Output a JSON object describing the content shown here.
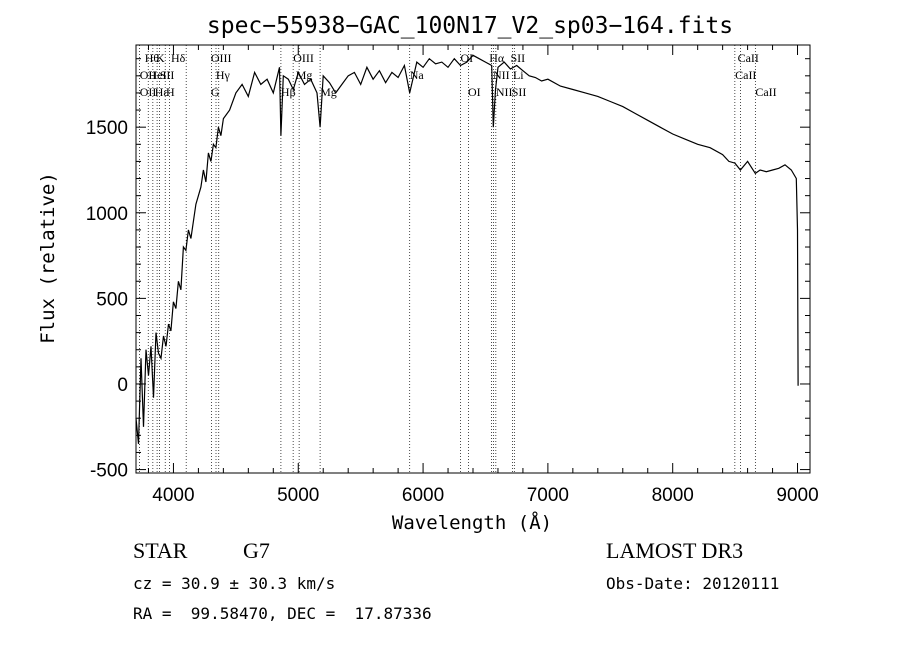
{
  "chart_data": {
    "type": "line",
    "title": "spec−55938−GAC_100N17_V2_sp03−164.fits",
    "xlabel": "Wavelength (Å)",
    "ylabel": "Flux (relative)",
    "xlim": [
      3700,
      9100
    ],
    "ylim": [
      -520,
      1980
    ],
    "xticks": [
      4000,
      5000,
      6000,
      7000,
      8000,
      9000
    ],
    "yticks": [
      -500,
      0,
      500,
      1000,
      1500
    ],
    "series": [
      {
        "name": "flux",
        "x": [
          3700,
          3720,
          3740,
          3760,
          3780,
          3800,
          3820,
          3840,
          3860,
          3880,
          3900,
          3920,
          3940,
          3960,
          3980,
          4000,
          4020,
          4040,
          4060,
          4080,
          4100,
          4120,
          4140,
          4160,
          4180,
          4200,
          4220,
          4240,
          4260,
          4280,
          4300,
          4320,
          4340,
          4360,
          4380,
          4400,
          4450,
          4500,
          4550,
          4600,
          4650,
          4700,
          4750,
          4800,
          4850,
          4861,
          4880,
          4920,
          4960,
          5000,
          5050,
          5100,
          5150,
          5175,
          5200,
          5250,
          5300,
          5350,
          5400,
          5450,
          5500,
          5550,
          5600,
          5650,
          5700,
          5750,
          5800,
          5850,
          5893,
          5950,
          6000,
          6050,
          6100,
          6150,
          6200,
          6250,
          6300,
          6350,
          6400,
          6450,
          6500,
          6550,
          6563,
          6580,
          6600,
          6650,
          6700,
          6750,
          6800,
          6850,
          6900,
          6950,
          7000,
          7100,
          7200,
          7300,
          7400,
          7500,
          7600,
          7700,
          7800,
          7900,
          8000,
          8100,
          8200,
          8300,
          8400,
          8450,
          8498,
          8542,
          8600,
          8662,
          8700,
          8750,
          8800,
          8850,
          8900,
          8950,
          8990,
          9000,
          9005
        ],
        "y": [
          -200,
          -350,
          150,
          -250,
          200,
          50,
          220,
          -80,
          300,
          180,
          150,
          280,
          220,
          350,
          310,
          480,
          440,
          600,
          550,
          800,
          780,
          900,
          850,
          950,
          1050,
          1100,
          1150,
          1250,
          1180,
          1350,
          1300,
          1400,
          1380,
          1500,
          1450,
          1550,
          1600,
          1700,
          1750,
          1680,
          1820,
          1750,
          1780,
          1700,
          1850,
          1450,
          1800,
          1780,
          1720,
          1820,
          1750,
          1780,
          1700,
          1500,
          1800,
          1760,
          1700,
          1750,
          1800,
          1820,
          1750,
          1850,
          1780,
          1830,
          1760,
          1820,
          1790,
          1860,
          1700,
          1880,
          1850,
          1900,
          1870,
          1880,
          1850,
          1900,
          1860,
          1880,
          1920,
          1900,
          1880,
          1860,
          1500,
          1720,
          1850,
          1880,
          1840,
          1860,
          1830,
          1800,
          1790,
          1770,
          1780,
          1740,
          1720,
          1700,
          1680,
          1650,
          1620,
          1580,
          1540,
          1500,
          1460,
          1430,
          1400,
          1380,
          1340,
          1300,
          1290,
          1250,
          1300,
          1230,
          1250,
          1240,
          1250,
          1260,
          1280,
          1250,
          1200,
          900,
          -10
        ]
      }
    ],
    "line_labels": {
      "row1": [
        {
          "x": 3770,
          "text": "Hθ"
        },
        {
          "x": 3860,
          "text": "K"
        },
        {
          "x": 3980,
          "text": "Hδ"
        },
        {
          "x": 4300,
          "text": "OIII"
        },
        {
          "x": 4960,
          "text": "OIII"
        },
        {
          "x": 6300,
          "text": "OI"
        },
        {
          "x": 6530,
          "text": "Hα"
        },
        {
          "x": 6700,
          "text": "SII"
        },
        {
          "x": 8520,
          "text": "CaII"
        }
      ],
      "row2": [
        {
          "x": 3730,
          "text": "OII"
        },
        {
          "x": 3800,
          "text": "HeI"
        },
        {
          "x": 3890,
          "text": "SII"
        },
        {
          "x": 4340,
          "text": "Hγ"
        },
        {
          "x": 4980,
          "text": "Mg"
        },
        {
          "x": 5893,
          "text": "Na"
        },
        {
          "x": 6560,
          "text": "NII"
        },
        {
          "x": 6720,
          "text": "Li"
        },
        {
          "x": 8500,
          "text": "CaII"
        }
      ],
      "row3": [
        {
          "x": 3730,
          "text": "OII"
        },
        {
          "x": 3850,
          "text": "Hε"
        },
        {
          "x": 3940,
          "text": "H"
        },
        {
          "x": 4300,
          "text": "G"
        },
        {
          "x": 4861,
          "text": "Hβ"
        },
        {
          "x": 5175,
          "text": "Mg"
        },
        {
          "x": 6360,
          "text": "OI"
        },
        {
          "x": 6583,
          "text": "NII"
        },
        {
          "x": 6710,
          "text": "SII"
        },
        {
          "x": 8662,
          "text": "CaII"
        }
      ]
    },
    "line_markers": [
      3727,
      3798,
      3835,
      3869,
      3889,
      3934,
      3969,
      4102,
      4304,
      4341,
      4363,
      4861,
      4959,
      5007,
      5175,
      5893,
      6300,
      6364,
      6548,
      6563,
      6583,
      6717,
      6731,
      8498,
      8542,
      8662
    ]
  },
  "info": {
    "object_class": "STAR",
    "subclass": "G7",
    "survey": "LAMOST DR3",
    "cz": "cz = 30.9 ± 30.3 km/s",
    "obs_date": "Obs-Date: 20120111",
    "radec": "RA =  99.58470, DEC =  17.87336"
  }
}
